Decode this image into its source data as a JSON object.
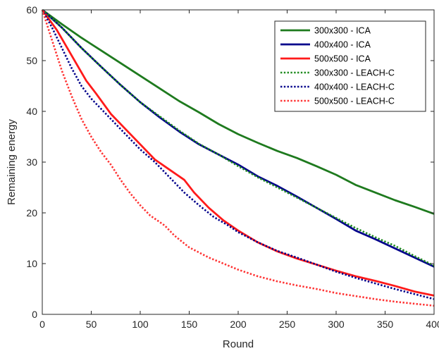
{
  "chart_data": {
    "type": "line",
    "title": "",
    "xlabel": "Round",
    "ylabel": "Remaining energy",
    "xlim": [
      0,
      400
    ],
    "ylim": [
      0,
      60
    ],
    "xticks": [
      0,
      50,
      100,
      150,
      200,
      250,
      300,
      350,
      400
    ],
    "yticks": [
      0,
      10,
      20,
      30,
      40,
      50,
      60
    ],
    "grid": false,
    "legend_position": "top-right",
    "series": [
      {
        "name": "300x300 - ICA",
        "color": "#1e7a1e",
        "style": "solid",
        "points": [
          [
            0,
            60
          ],
          [
            20,
            57.2
          ],
          [
            40,
            54.5
          ],
          [
            60,
            52
          ],
          [
            80,
            49.5
          ],
          [
            100,
            47
          ],
          [
            120,
            44.5
          ],
          [
            140,
            42
          ],
          [
            160,
            39.8
          ],
          [
            180,
            37.5
          ],
          [
            200,
            35.5
          ],
          [
            220,
            33.8
          ],
          [
            240,
            32.2
          ],
          [
            260,
            30.8
          ],
          [
            280,
            29.2
          ],
          [
            300,
            27.5
          ],
          [
            320,
            25.5
          ],
          [
            340,
            24
          ],
          [
            360,
            22.5
          ],
          [
            380,
            21.2
          ],
          [
            400,
            19.8
          ]
        ]
      },
      {
        "name": "400x400 - ICA",
        "color": "#00008b",
        "style": "solid",
        "points": [
          [
            0,
            60
          ],
          [
            20,
            56.5
          ],
          [
            40,
            52.5
          ],
          [
            60,
            48.8
          ],
          [
            80,
            45.2
          ],
          [
            100,
            41.8
          ],
          [
            120,
            38.8
          ],
          [
            140,
            36
          ],
          [
            160,
            33.5
          ],
          [
            180,
            31.5
          ],
          [
            200,
            29.5
          ],
          [
            220,
            27.2
          ],
          [
            240,
            25.3
          ],
          [
            260,
            23.2
          ],
          [
            280,
            21
          ],
          [
            300,
            18.8
          ],
          [
            320,
            16.5
          ],
          [
            340,
            14.8
          ],
          [
            360,
            13
          ],
          [
            380,
            11.2
          ],
          [
            400,
            9.4
          ]
        ]
      },
      {
        "name": "500x500 - ICA",
        "color": "#ff1a1a",
        "style": "solid",
        "points": [
          [
            0,
            60
          ],
          [
            15,
            56
          ],
          [
            30,
            51
          ],
          [
            45,
            46
          ],
          [
            55,
            43.5
          ],
          [
            70,
            39.5
          ],
          [
            85,
            36.5
          ],
          [
            100,
            33.5
          ],
          [
            115,
            30.5
          ],
          [
            130,
            28.5
          ],
          [
            145,
            26.5
          ],
          [
            155,
            24
          ],
          [
            170,
            21
          ],
          [
            185,
            18.5
          ],
          [
            200,
            16.5
          ],
          [
            220,
            14.2
          ],
          [
            240,
            12.4
          ],
          [
            260,
            11
          ],
          [
            280,
            9.8
          ],
          [
            300,
            8.6
          ],
          [
            320,
            7.5
          ],
          [
            340,
            6.6
          ],
          [
            360,
            5.6
          ],
          [
            380,
            4.5
          ],
          [
            400,
            3.7
          ]
        ]
      },
      {
        "name": "300x300 - LEACH-C",
        "color": "#1e8a1e",
        "style": "dotted",
        "points": [
          [
            0,
            60
          ],
          [
            20,
            56.5
          ],
          [
            40,
            52.5
          ],
          [
            60,
            48.8
          ],
          [
            80,
            45.2
          ],
          [
            100,
            41.8
          ],
          [
            120,
            39
          ],
          [
            140,
            36.2
          ],
          [
            160,
            33.6
          ],
          [
            180,
            31.5
          ],
          [
            200,
            29.2
          ],
          [
            220,
            27
          ],
          [
            240,
            25
          ],
          [
            260,
            23
          ],
          [
            280,
            21
          ],
          [
            300,
            19
          ],
          [
            320,
            17
          ],
          [
            340,
            15.2
          ],
          [
            360,
            13.5
          ],
          [
            380,
            11.5
          ],
          [
            400,
            9.6
          ]
        ]
      },
      {
        "name": "400x400 - LEACH-C",
        "color": "#00008b",
        "style": "dotted",
        "points": [
          [
            0,
            60
          ],
          [
            10,
            56.5
          ],
          [
            20,
            52.5
          ],
          [
            30,
            48.5
          ],
          [
            40,
            45
          ],
          [
            50,
            42.5
          ],
          [
            60,
            40.5
          ],
          [
            70,
            38.5
          ],
          [
            85,
            35.5
          ],
          [
            100,
            32.5
          ],
          [
            115,
            30
          ],
          [
            130,
            27
          ],
          [
            145,
            24
          ],
          [
            160,
            21.5
          ],
          [
            175,
            19.2
          ],
          [
            190,
            17.5
          ],
          [
            200,
            16.2
          ],
          [
            220,
            14.2
          ],
          [
            240,
            12.5
          ],
          [
            260,
            11.2
          ],
          [
            280,
            9.8
          ],
          [
            300,
            8.4
          ],
          [
            320,
            7.2
          ],
          [
            340,
            6.1
          ],
          [
            360,
            5
          ],
          [
            380,
            4
          ],
          [
            400,
            3
          ]
        ]
      },
      {
        "name": "500x500 - LEACH-C",
        "color": "#ff3333",
        "style": "dotted",
        "points": [
          [
            0,
            60
          ],
          [
            10,
            54
          ],
          [
            20,
            48
          ],
          [
            30,
            43
          ],
          [
            40,
            38.5
          ],
          [
            50,
            35
          ],
          [
            60,
            32
          ],
          [
            70,
            29.5
          ],
          [
            80,
            26.5
          ],
          [
            90,
            23.8
          ],
          [
            100,
            21.5
          ],
          [
            110,
            19.5
          ],
          [
            125,
            17.5
          ],
          [
            135,
            15.5
          ],
          [
            150,
            13.2
          ],
          [
            170,
            11.2
          ],
          [
            185,
            10
          ],
          [
            200,
            8.8
          ],
          [
            220,
            7.5
          ],
          [
            240,
            6.5
          ],
          [
            260,
            5.7
          ],
          [
            280,
            5
          ],
          [
            300,
            4.2
          ],
          [
            320,
            3.6
          ],
          [
            340,
            3
          ],
          [
            360,
            2.5
          ],
          [
            380,
            2.1
          ],
          [
            400,
            1.7
          ]
        ]
      }
    ]
  }
}
